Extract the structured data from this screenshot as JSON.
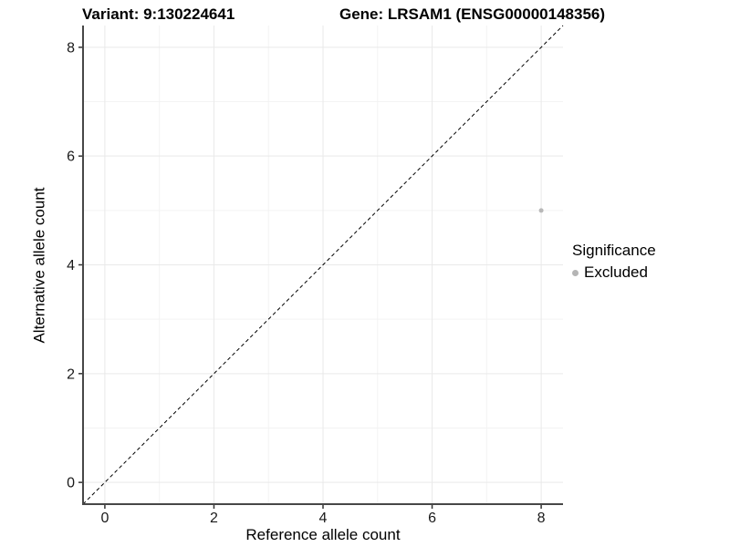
{
  "titles": {
    "variant": "Variant: 9:130224641",
    "gene": "Gene: LRSAM1 (ENSG00000148356)"
  },
  "chart_data": {
    "type": "scatter",
    "title": "Variant: 9:130224641  Gene: LRSAM1 (ENSG00000148356)",
    "xlabel": "Reference allele count",
    "ylabel": "Alternative allele count",
    "xlim": [
      -0.4,
      8.4
    ],
    "ylim": [
      -0.4,
      8.4
    ],
    "x_ticks": [
      0,
      2,
      4,
      6,
      8
    ],
    "y_ticks": [
      0,
      2,
      4,
      6,
      8
    ],
    "x_minor_gridlines": [
      1,
      3,
      5,
      7
    ],
    "y_minor_gridlines": [
      1,
      3,
      5,
      7
    ],
    "grid": true,
    "points": [
      {
        "x": 8,
        "y": 5,
        "significance": "Excluded"
      }
    ],
    "reference_line": {
      "style": "dashed",
      "slope": 1,
      "intercept": 0,
      "description": "identity line y = x"
    },
    "legend": {
      "position": "right",
      "title": "Significance",
      "items": [
        {
          "label": "Excluded",
          "color": "#b5b5b5"
        }
      ]
    },
    "colors": {
      "point": "#b8b8b8",
      "grid_major": "#e9e9e9",
      "grid_minor": "#f3f3f3",
      "axis_line": "#474747",
      "tick_mark": "#333333",
      "dashed_line": "#000000",
      "background": "#ffffff"
    }
  }
}
